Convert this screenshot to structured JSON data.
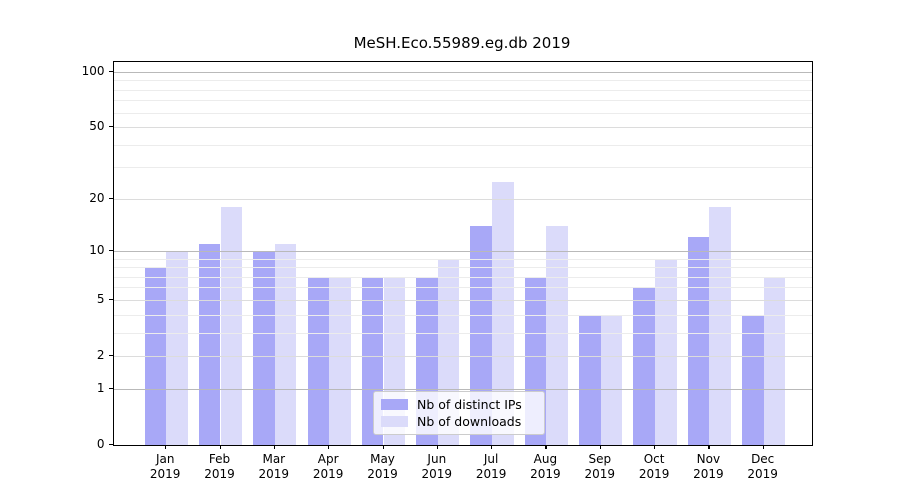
{
  "figure": {
    "background": "#ffffff"
  },
  "chart_data": {
    "type": "bar",
    "title": "MeSH.Eco.55989.eg.db 2019",
    "categories": [
      "Jan",
      "Feb",
      "Mar",
      "Apr",
      "May",
      "Jun",
      "Jul",
      "Aug",
      "Sep",
      "Oct",
      "Nov",
      "Dec"
    ],
    "category_year": "2019",
    "series": [
      {
        "name": "Nb of distinct IPs",
        "color": "#a8a8f7",
        "values": [
          8,
          11,
          10,
          7,
          7,
          7,
          14,
          7,
          4,
          6,
          12,
          4
        ]
      },
      {
        "name": "Nb of downloads",
        "color": "#dbdbfa",
        "values": [
          10,
          18,
          11,
          7,
          7,
          9,
          25,
          14,
          4,
          9,
          18,
          7
        ]
      }
    ],
    "xlabel": "",
    "ylabel": "",
    "y_scale": "log10(value+1)",
    "ylim": [
      0,
      113
    ],
    "y_ticks_labeled": [
      0,
      1,
      2,
      5,
      10,
      20,
      50,
      100
    ],
    "y_ticks_minor": [
      3,
      4,
      6,
      7,
      8,
      9,
      30,
      40,
      60,
      70,
      80,
      90
    ],
    "y_gridlines_emphasized": [
      1,
      10,
      100
    ],
    "grid": true,
    "legend_position": "bottom-center"
  },
  "colors": {
    "axis": "#000000",
    "grid_emphasized": "#b9b9b9",
    "grid_labeled": "#dcdcdc",
    "grid_minor": "#ececec",
    "legend_border": "#cccccc",
    "text": "#000000"
  }
}
